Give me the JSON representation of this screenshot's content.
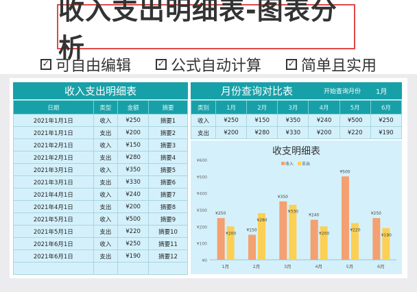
{
  "banner": {
    "title": "收入支出明细表-图表分析",
    "features": [
      "可自由编辑",
      "公式自动计算",
      "简单且实用"
    ],
    "check": "☑"
  },
  "left": {
    "title": "收入支出明细表",
    "headers": [
      "日期",
      "类型",
      "金额",
      "摘要"
    ],
    "rows": [
      [
        "2021年1月1日",
        "收入",
        "¥250",
        "摘要1"
      ],
      [
        "2021年1月1日",
        "支出",
        "¥200",
        "摘要2"
      ],
      [
        "2021年2月1日",
        "收入",
        "¥150",
        "摘要3"
      ],
      [
        "2021年2月1日",
        "支出",
        "¥280",
        "摘要4"
      ],
      [
        "2021年3月1日",
        "收入",
        "¥350",
        "摘要5"
      ],
      [
        "2021年3月1日",
        "支出",
        "¥330",
        "摘要6"
      ],
      [
        "2021年4月1日",
        "收入",
        "¥240",
        "摘要7"
      ],
      [
        "2021年4月1日",
        "支出",
        "¥200",
        "摘要8"
      ],
      [
        "2021年5月1日",
        "收入",
        "¥500",
        "摘要9"
      ],
      [
        "2021年5月1日",
        "支出",
        "¥220",
        "摘要10"
      ],
      [
        "2021年6月1日",
        "收入",
        "¥250",
        "摘要11"
      ],
      [
        "2021年6月1日",
        "支出",
        "¥190",
        "摘要12"
      ],
      [
        "",
        "",
        "",
        ""
      ]
    ]
  },
  "right": {
    "title": "月份查询对比表",
    "start_label": "开始查询月份",
    "start_value": "1月",
    "headers": [
      "类别",
      "1月",
      "2月",
      "3月",
      "4月",
      "5月",
      "6月"
    ],
    "rows": [
      [
        "收入",
        "¥250",
        "¥150",
        "¥350",
        "¥240",
        "¥500",
        "¥250"
      ],
      [
        "支出",
        "¥200",
        "¥280",
        "¥330",
        "¥200",
        "¥220",
        "¥190"
      ]
    ]
  },
  "chart_data": {
    "type": "bar",
    "title": "收支明细表",
    "categories": [
      "1月",
      "2月",
      "3月",
      "4月",
      "5月",
      "6月"
    ],
    "series": [
      {
        "name": "收入",
        "values": [
          250,
          150,
          350,
          240,
          500,
          250
        ],
        "color": "#f4a070"
      },
      {
        "name": "支出",
        "values": [
          200,
          280,
          330,
          200,
          220,
          190
        ],
        "color": "#fcd054"
      }
    ],
    "yticks": [
      "¥0",
      "¥100",
      "¥200",
      "¥300",
      "¥400",
      "¥500",
      "¥600"
    ],
    "ylim": [
      0,
      600
    ],
    "legend": "top",
    "data_labels": [
      "¥250",
      "¥150",
      "¥350",
      "¥240",
      "¥500",
      "¥250",
      "¥200",
      "¥280",
      "¥330",
      "¥200",
      "¥220",
      "¥190"
    ]
  }
}
